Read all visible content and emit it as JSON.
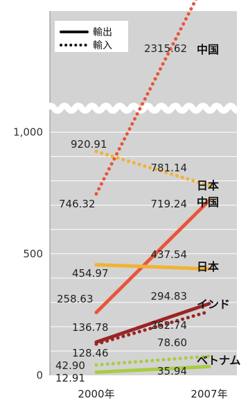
{
  "chart_data": {
    "type": "line",
    "title": "",
    "xlabel": "",
    "ylabel": "",
    "categories": [
      "2000年",
      "2007年"
    ],
    "ylim": [
      0,
      2500
    ],
    "y_ticks": [
      "0",
      "500",
      "1,000",
      "2,500"
    ],
    "axis_break": {
      "from": 1000,
      "to": 2000
    },
    "grid": true,
    "legend_position": "top-left",
    "legend": [
      {
        "label": "輸出",
        "style": "solid"
      },
      {
        "label": "輸入",
        "style": "dotted"
      }
    ],
    "series": [
      {
        "name": "中国",
        "flow": "輸入",
        "style": "dotted",
        "color": "#E8553A",
        "values": [
          746.32,
          2315.62
        ],
        "labels": [
          "746.32",
          "2315.62"
        ]
      },
      {
        "name": "日本",
        "flow": "輸入",
        "style": "dotted",
        "color": "#F2B233",
        "values": [
          920.91,
          781.14
        ],
        "labels": [
          "920.91",
          "781.14"
        ]
      },
      {
        "name": "中国",
        "flow": "輸出",
        "style": "solid",
        "color": "#E8553A",
        "values": [
          258.63,
          719.24
        ],
        "labels": [
          "258.63",
          "719.24"
        ]
      },
      {
        "name": "日本",
        "flow": "輸出",
        "style": "solid",
        "color": "#F2B233",
        "values": [
          454.97,
          437.54
        ],
        "labels": [
          "454.97",
          "437.54"
        ]
      },
      {
        "name": "インド",
        "flow": "輸出",
        "style": "solid",
        "color": "#9B2424",
        "values": [
          136.78,
          294.83
        ],
        "labels": [
          "136.78",
          "294.83"
        ]
      },
      {
        "name": "",
        "flow": "輸入",
        "style": "dotted",
        "color": "#9B2424",
        "values": [
          128.46,
          262.74
        ],
        "labels": [
          "128.46",
          "262.74"
        ]
      },
      {
        "name": "ベトナム",
        "flow": "輸入",
        "style": "dotted",
        "color": "#A8CC45",
        "values": [
          42.9,
          78.6
        ],
        "labels": [
          "42.90",
          "78.60"
        ]
      },
      {
        "name": "",
        "flow": "輸出",
        "style": "solid",
        "color": "#A8CC45",
        "values": [
          12.91,
          35.94
        ],
        "labels": [
          "12.91",
          "35.94"
        ]
      }
    ]
  }
}
